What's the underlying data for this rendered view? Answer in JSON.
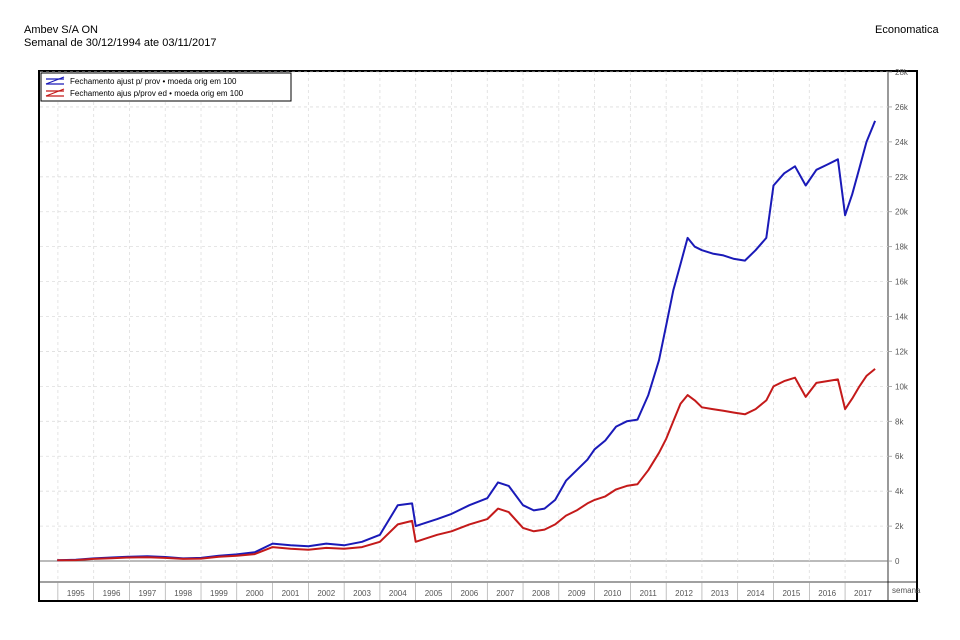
{
  "header": {
    "title": "Ambev S/A ON",
    "subtitle": "Semanal de 30/12/1994 ate 03/11/2017",
    "source": "Economatica"
  },
  "chart_data": {
    "type": "line",
    "xlabel": "semana",
    "ylabel": "",
    "xlim": [
      1994.5,
      2018.2
    ],
    "ylim": [
      -1200,
      28000
    ],
    "x_tick_labels": [
      "1995",
      "1996",
      "1997",
      "1998",
      "1999",
      "2000",
      "2001",
      "2002",
      "2003",
      "2004",
      "2005",
      "2006",
      "2007",
      "2008",
      "2009",
      "2010",
      "2011",
      "2012",
      "2013",
      "2014",
      "2015",
      "2016",
      "2017"
    ],
    "y_ticks": [
      0,
      2000,
      4000,
      6000,
      8000,
      10000,
      12000,
      14000,
      16000,
      18000,
      20000,
      22000,
      24000,
      26000,
      28000
    ],
    "y_tick_labels": [
      "0",
      "2k",
      "4k",
      "6k",
      "8k",
      "10k",
      "12k",
      "14k",
      "16k",
      "18k",
      "20k",
      "22k",
      "24k",
      "26k",
      "28k"
    ],
    "grid": true,
    "legend_position": "top-left",
    "colors": {
      "series1": "#1a1ab8",
      "series2": "#c41a1a"
    },
    "series": [
      {
        "name": "Fechamento  ajust p/ prov  • moeda orig em 100",
        "legend_label": "Fechamento  ajust p/ prov  • moeda orig em 100",
        "color": "#1a1ab8",
        "x": [
          1994.98,
          1995.5,
          1996.0,
          1996.5,
          1997.0,
          1997.5,
          1998.0,
          1998.5,
          1999.0,
          1999.5,
          2000.0,
          2000.5,
          2001.0,
          2001.5,
          2002.0,
          2002.5,
          2003.0,
          2003.5,
          2004.0,
          2004.5,
          2004.9,
          2005.0,
          2005.3,
          2005.6,
          2006.0,
          2006.5,
          2007.0,
          2007.3,
          2007.6,
          2008.0,
          2008.3,
          2008.6,
          2008.9,
          2009.2,
          2009.5,
          2009.8,
          2010.0,
          2010.3,
          2010.6,
          2010.9,
          2011.2,
          2011.5,
          2011.8,
          2012.0,
          2012.2,
          2012.4,
          2012.6,
          2012.8,
          2013.0,
          2013.3,
          2013.6,
          2013.9,
          2014.2,
          2014.5,
          2014.8,
          2015.0,
          2015.3,
          2015.6,
          2015.9,
          2016.2,
          2016.5,
          2016.8,
          2017.0,
          2017.2,
          2017.4,
          2017.6,
          2017.84
        ],
        "values": [
          50,
          70,
          150,
          200,
          250,
          280,
          230,
          150,
          180,
          300,
          380,
          500,
          1000,
          900,
          850,
          1000,
          900,
          1100,
          1500,
          3200,
          3300,
          2000,
          2200,
          2400,
          2700,
          3200,
          3600,
          4500,
          4300,
          3200,
          2900,
          3000,
          3500,
          4600,
          5200,
          5800,
          6400,
          6900,
          7700,
          8000,
          8100,
          9500,
          11500,
          13500,
          15500,
          17000,
          18500,
          18000,
          17800,
          17600,
          17500,
          17300,
          17200,
          17800,
          18500,
          21500,
          22200,
          22600,
          21500,
          22400,
          22700,
          23000,
          19800,
          21000,
          22500,
          24000,
          25200
        ]
      },
      {
        "name": "Fechamento  ajus p/prov ed  • moeda orig em 100",
        "legend_label": "Fechamento  ajus p/prov ed  • moeda orig em 100",
        "color": "#c41a1a",
        "x": [
          1994.98,
          1995.5,
          1996.0,
          1996.5,
          1997.0,
          1997.5,
          1998.0,
          1998.5,
          1999.0,
          1999.5,
          2000.0,
          2000.5,
          2001.0,
          2001.5,
          2002.0,
          2002.5,
          2003.0,
          2003.5,
          2004.0,
          2004.5,
          2004.9,
          2005.0,
          2005.3,
          2005.6,
          2006.0,
          2006.5,
          2007.0,
          2007.3,
          2007.6,
          2008.0,
          2008.3,
          2008.6,
          2008.9,
          2009.2,
          2009.5,
          2009.8,
          2010.0,
          2010.3,
          2010.6,
          2010.9,
          2011.2,
          2011.5,
          2011.8,
          2012.0,
          2012.2,
          2012.4,
          2012.6,
          2012.8,
          2013.0,
          2013.3,
          2013.6,
          2013.9,
          2014.2,
          2014.5,
          2014.8,
          2015.0,
          2015.3,
          2015.6,
          2015.9,
          2016.2,
          2016.5,
          2016.8,
          2017.0,
          2017.2,
          2017.4,
          2017.6,
          2017.84
        ],
        "values": [
          40,
          55,
          120,
          160,
          200,
          220,
          180,
          120,
          140,
          250,
          300,
          400,
          800,
          700,
          650,
          750,
          700,
          800,
          1100,
          2100,
          2300,
          1100,
          1300,
          1500,
          1700,
          2100,
          2400,
          3000,
          2800,
          1900,
          1700,
          1800,
          2100,
          2600,
          2900,
          3300,
          3500,
          3700,
          4100,
          4300,
          4400,
          5200,
          6200,
          7000,
          8000,
          9000,
          9500,
          9200,
          8800,
          8700,
          8600,
          8500,
          8400,
          8700,
          9200,
          10000,
          10300,
          10500,
          9400,
          10200,
          10300,
          10400,
          8700,
          9300,
          10000,
          10600,
          11000
        ]
      }
    ]
  }
}
